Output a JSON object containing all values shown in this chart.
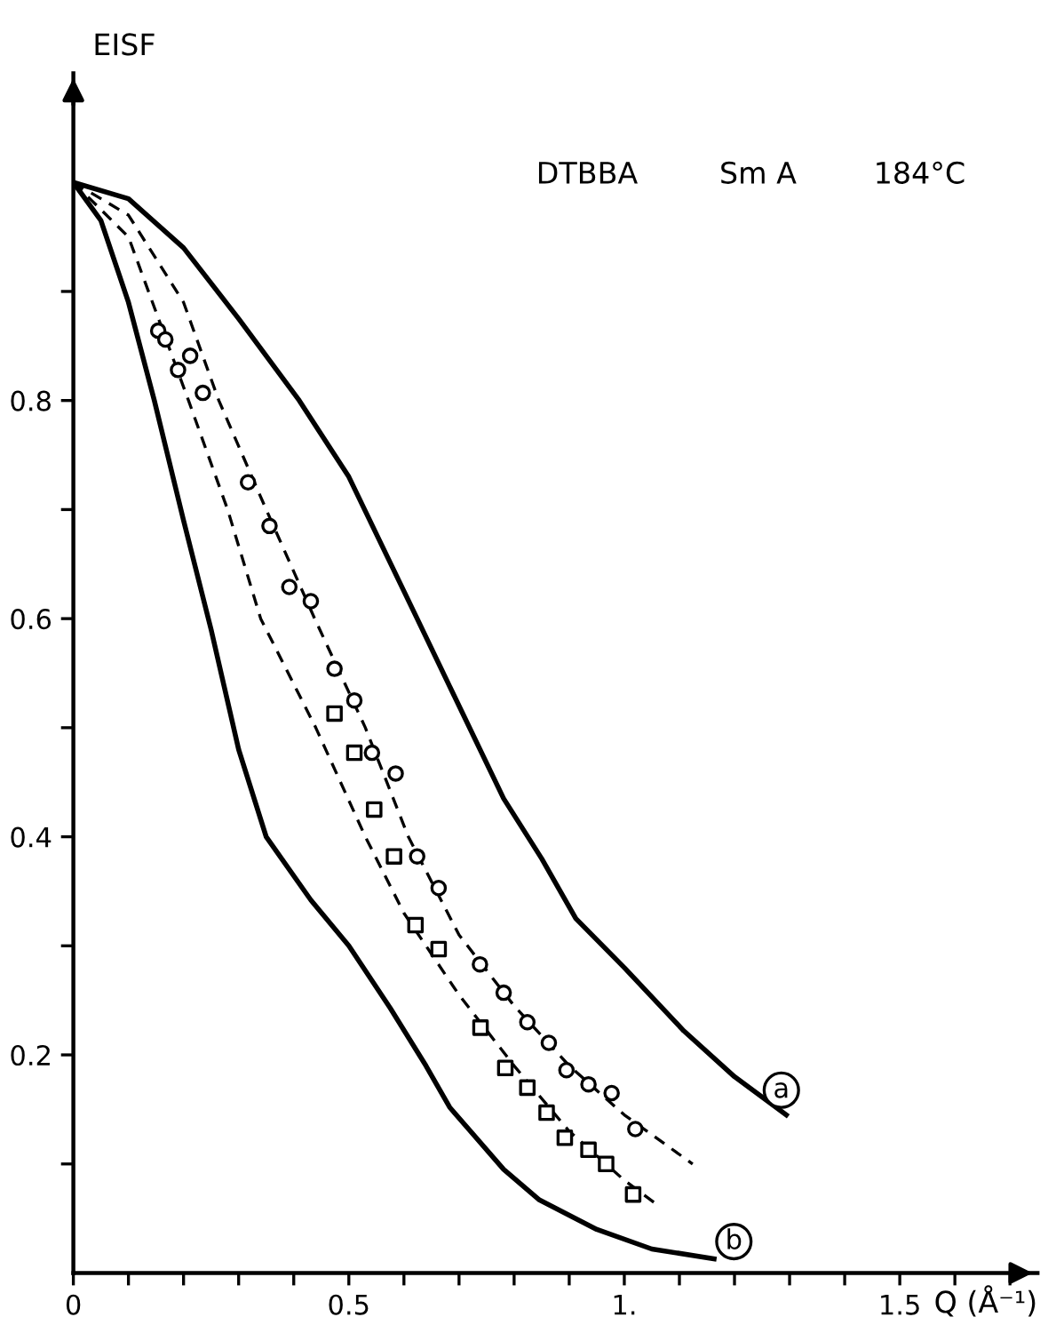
{
  "chart_data": {
    "type": "line",
    "xlabel": "Q (Å⁻¹)",
    "ylabel": "EISF",
    "annotations": [
      "DTBBA",
      "Sm A",
      "184°C"
    ],
    "xlim": [
      0,
      1.75
    ],
    "ylim": [
      0,
      1.1
    ],
    "xticks": [
      0,
      {
        "value": 0.1,
        "label": null
      },
      {
        "value": 0.2,
        "label": null
      },
      {
        "value": 0.3,
        "label": null
      },
      {
        "value": 0.4,
        "label": null
      },
      0.5,
      {
        "value": 0.6,
        "label": null
      },
      {
        "value": 0.7,
        "label": null
      },
      {
        "value": 0.8,
        "label": null
      },
      {
        "value": 0.9,
        "label": null
      },
      {
        "value": 1,
        "label": "1."
      },
      {
        "value": 1.1,
        "label": null
      },
      {
        "value": 1.2,
        "label": null
      },
      {
        "value": 1.3,
        "label": null
      },
      {
        "value": 1.4,
        "label": null
      },
      1.5,
      {
        "value": 1.6,
        "label": null
      },
      {
        "value": 1.7,
        "label": null
      }
    ],
    "yticks": [
      {
        "value": 0.1,
        "label": null
      },
      0.2,
      {
        "value": 0.3,
        "label": null
      },
      0.4,
      {
        "value": 0.5,
        "label": null
      },
      0.6,
      {
        "value": 0.7,
        "label": null
      },
      0.8,
      {
        "value": 0.9,
        "label": null
      }
    ],
    "grid": false,
    "legend": false,
    "series": [
      {
        "name": "a",
        "color": "#000000",
        "line_style": "solid",
        "x": [
          0,
          0.1,
          0.2,
          0.3,
          0.41,
          0.5,
          0.624,
          0.7,
          0.781,
          0.85,
          0.912,
          1.0,
          1.108,
          1.2,
          1.294
        ],
        "values": [
          1,
          0.985,
          0.94,
          0.875,
          0.8,
          0.73,
          0.6,
          0.52,
          0.435,
          0.38,
          0.325,
          0.28,
          0.222,
          0.18,
          0.145
        ]
      },
      {
        "name": "b",
        "color": "#000000",
        "line_style": "solid",
        "x": [
          0,
          0.05,
          0.1,
          0.147,
          0.2,
          0.25,
          0.3,
          0.35,
          0.431,
          0.5,
          0.575,
          0.64,
          0.683,
          0.781,
          0.846,
          0.95,
          1.05,
          1.163
        ],
        "values": [
          1,
          0.965,
          0.89,
          0.8,
          0.69,
          0.59,
          0.48,
          0.4,
          0.342,
          0.3,
          0.243,
          0.19,
          0.152,
          0.095,
          0.067,
          0.04,
          0.022,
          0.013
        ]
      },
      {
        "color": "#000000",
        "line_style": "dashed",
        "x": [
          0,
          0.1,
          0.2,
          0.264,
          0.35,
          0.438,
          0.53,
          0.608,
          0.7,
          0.8,
          0.9,
          1.0,
          1.124
        ],
        "values": [
          1,
          0.97,
          0.89,
          0.8,
          0.7,
          0.6,
          0.5,
          0.4,
          0.31,
          0.245,
          0.19,
          0.145,
          0.1
        ]
      },
      {
        "color": "#000000",
        "line_style": "dashed",
        "x": [
          0,
          0.1,
          0.209,
          0.28,
          0.34,
          0.44,
          0.53,
          0.6,
          0.7,
          0.8,
          0.9,
          1.0,
          1.056
        ],
        "values": [
          1,
          0.95,
          0.8,
          0.7,
          0.6,
          0.5,
          0.4,
          0.33,
          0.255,
          0.19,
          0.13,
          0.085,
          0.064
        ]
      },
      {
        "type": "scatter",
        "color": "#000000",
        "marker": "circle",
        "x": [
          0.154,
          0.167,
          0.19,
          0.212,
          0.235,
          0.317,
          0.356,
          0.392,
          0.431,
          0.474,
          0.51,
          0.542,
          0.585,
          0.624,
          0.663,
          0.738,
          0.781,
          0.824,
          0.863,
          0.895,
          0.935,
          0.977,
          1.02
        ],
        "values": [
          0.864,
          0.856,
          0.828,
          0.841,
          0.807,
          0.725,
          0.685,
          0.629,
          0.616,
          0.554,
          0.525,
          0.477,
          0.458,
          0.382,
          0.353,
          0.283,
          0.257,
          0.23,
          0.211,
          0.186,
          0.173,
          0.165,
          0.132
        ]
      },
      {
        "type": "scatter",
        "color": "#000000",
        "marker": "square",
        "x": [
          0.474,
          0.51,
          0.546,
          0.582,
          0.621,
          0.663,
          0.739,
          0.784,
          0.824,
          0.859,
          0.892,
          0.935,
          0.967,
          1.016
        ],
        "values": [
          0.513,
          0.477,
          0.425,
          0.382,
          0.319,
          0.297,
          0.225,
          0.188,
          0.17,
          0.147,
          0.124,
          0.113,
          0.1,
          0.072
        ]
      }
    ]
  }
}
